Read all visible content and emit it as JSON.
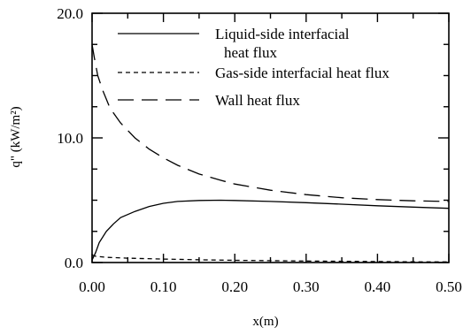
{
  "chart_data": {
    "type": "line",
    "title": "",
    "xlabel": "x(m)",
    "ylabel": "q\" (kW/m²)",
    "xlim": [
      0,
      0.5
    ],
    "ylim": [
      0,
      20
    ],
    "x_ticks": [
      "0.00",
      "0.10",
      "0.20",
      "0.30",
      "0.40",
      "0.50"
    ],
    "y_ticks": [
      "0.0",
      "10.0",
      "20.0"
    ],
    "grid": false,
    "legend_position": "top-right",
    "series": [
      {
        "name": "Liquid-side interfacial heat flux",
        "legend_lines": [
          "Liquid-side interfacial",
          "heat flux"
        ],
        "dash": "solid",
        "x": [
          0.0,
          0.005,
          0.01,
          0.02,
          0.03,
          0.04,
          0.06,
          0.08,
          0.1,
          0.12,
          0.15,
          0.18,
          0.2,
          0.25,
          0.3,
          0.35,
          0.4,
          0.45,
          0.5
        ],
        "y": [
          0.2,
          0.8,
          1.6,
          2.5,
          3.1,
          3.6,
          4.1,
          4.5,
          4.75,
          4.9,
          4.98,
          5.0,
          4.98,
          4.9,
          4.8,
          4.68,
          4.55,
          4.45,
          4.35
        ]
      },
      {
        "name": "Gas-side interfacial heat flux",
        "legend_lines": [
          "Gas-side interfacial heat flux"
        ],
        "dash": "short",
        "x": [
          0.0,
          0.005,
          0.02,
          0.05,
          0.1,
          0.15,
          0.2,
          0.25,
          0.3,
          0.35,
          0.4,
          0.45,
          0.5
        ],
        "y": [
          0.6,
          0.5,
          0.42,
          0.35,
          0.28,
          0.22,
          0.18,
          0.15,
          0.12,
          0.1,
          0.08,
          0.06,
          0.05
        ]
      },
      {
        "name": "Wall heat flux",
        "legend_lines": [
          "Wall heat flux"
        ],
        "dash": "long",
        "x": [
          0.0,
          0.003,
          0.008,
          0.015,
          0.025,
          0.04,
          0.06,
          0.08,
          0.1,
          0.12,
          0.15,
          0.18,
          0.2,
          0.25,
          0.3,
          0.35,
          0.4,
          0.45,
          0.5
        ],
        "y": [
          17.5,
          16.5,
          15.0,
          13.8,
          12.4,
          11.2,
          10.0,
          9.1,
          8.4,
          7.8,
          7.1,
          6.6,
          6.3,
          5.8,
          5.45,
          5.2,
          5.05,
          4.95,
          4.9
        ]
      }
    ]
  }
}
